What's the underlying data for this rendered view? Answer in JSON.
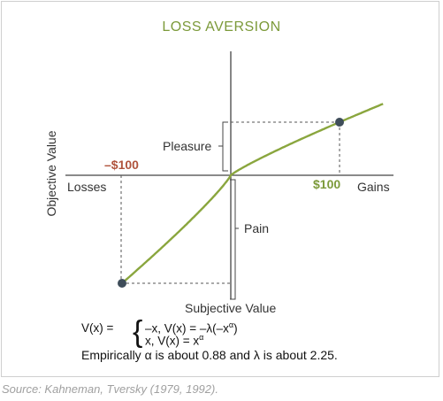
{
  "chart_data": {
    "type": "line",
    "title": "LOSS AVERSION",
    "xlabel": "Subjective Value",
    "ylabel": "Objective Value",
    "x_axis_left_label": "Losses",
    "x_axis_right_label": "Gains",
    "series": [
      {
        "name": "",
        "function": "V(x) = x^0.88 for x>=0; -2.25*(-x)^0.88 for x<0",
        "alpha": 0.88,
        "lambda": 2.25,
        "x_range": [
          -100,
          140
        ]
      }
    ],
    "markers": [
      {
        "label": "$100",
        "x": 100,
        "color": "#7c9a3a"
      },
      {
        "label": "–$100",
        "x": -100,
        "color": "#b0533c"
      }
    ],
    "annotations": {
      "gain_bracket": "Pleasure",
      "loss_bracket": "Pain"
    },
    "grid": false,
    "line_color": "#8aa63e",
    "point_color": "#3f4d5a"
  },
  "formula": {
    "lhs": "V(x) =",
    "line1": "–x, V(x) = –λ(–x",
    "line1_exp": "α",
    "line1_tail": ")",
    "line2": "x, V(x) = x",
    "line2_exp": "α",
    "note": "Empirically α is about 0.88 and λ is about 2.25."
  },
  "source": "Source: Kahneman, Tversky (1979, 1992)."
}
